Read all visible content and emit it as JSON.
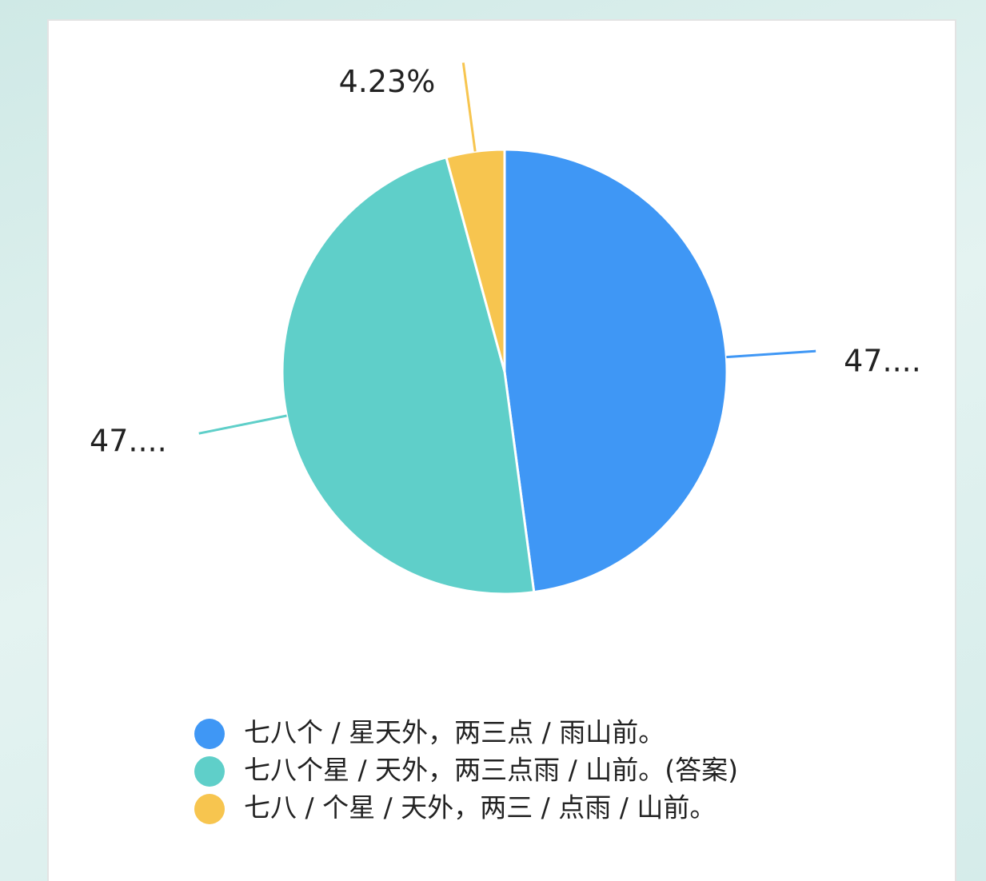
{
  "chart_data": {
    "type": "pie",
    "categories": [
      "七八个 / 星天外，两三点 / 雨山前。",
      "七八个星 / 天外，两三点雨 / 山前。(答案)",
      "七八 / 个星 / 天外，两三 / 点雨 / 山前。"
    ],
    "values": [
      47.89,
      47.88,
      4.23
    ],
    "value_labels": [
      "47....",
      "47....",
      "4.23%"
    ],
    "colors": [
      "#3f97f5",
      "#5fcfc9",
      "#f7c54f"
    ]
  }
}
